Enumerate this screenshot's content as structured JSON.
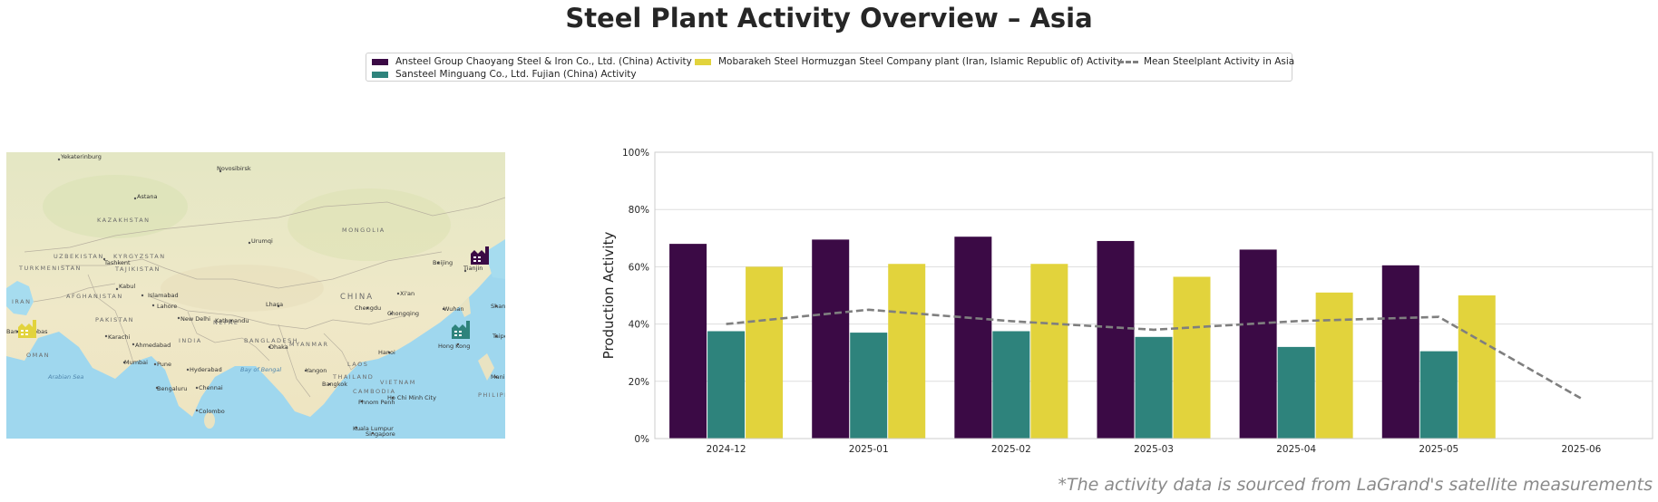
{
  "title": "Steel Plant Activity Overview – Asia",
  "footnote": "*The activity data is sourced from LaGrand's satellite measurements",
  "legend": {
    "items": [
      {
        "label": "Ansteel Group Chaoyang Steel & Iron Co., Ltd. (China) Activity",
        "color": "#3b0a45"
      },
      {
        "label": "Sansteel Minguang Co., Ltd. Fujian (China) Activity",
        "color": "#2e837c"
      },
      {
        "label": "Mobarakeh Steel Hormuzgan Steel Company plant (Iran, Islamic Republic of) Activity",
        "color": "#e2d33c"
      },
      {
        "label": "Mean Steelplant Activity in Asia",
        "color": "#7f7f7f"
      }
    ]
  },
  "map": {
    "cities": [
      "Yekaterinburg",
      "Novosibirsk",
      "Astana",
      "Urumqi",
      "Tashkent",
      "Kabul",
      "Islamabad",
      "Lahore",
      "New Delhi",
      "Karachi",
      "Ahmedabad",
      "Mumbai",
      "Pune",
      "Hyderabad",
      "Bengaluru",
      "Chennai",
      "Colombo",
      "Dhaka",
      "Yangon",
      "Bangkok",
      "Hanoi",
      "Phnom Penh",
      "Ho Chi Minh City",
      "Kuala Lumpur",
      "Singapore",
      "Beijing",
      "Tianjin",
      "Xi'an",
      "Chengdu",
      "Chongqing",
      "Wuhan",
      "Hong Kong",
      "Lhasa",
      "Kathmandu",
      "Shanghai",
      "Taipei",
      "Manila",
      "Bandar Abbas"
    ],
    "regions": [
      "KAZAKHSTAN",
      "MONGOLIA",
      "UZBEKISTAN",
      "KYRGYZSTAN",
      "TURKMENISTAN",
      "TAJIKISTAN",
      "AFGHANISTAN",
      "IRAN",
      "PAKISTAN",
      "INDIA",
      "NEPAL",
      "CHINA",
      "BANGLADESH",
      "MYANMAR",
      "LAOS",
      "THAILAND",
      "VIETNAM",
      "CAMBODIA",
      "OMAN",
      "PHILIPPINES"
    ],
    "seas": [
      "Arabian Sea",
      "Bay of Bengal"
    ],
    "markers": [
      {
        "plant": "Ansteel Group Chaoyang Steel & Iron Co., Ltd. (China)",
        "icon": "factory-icon",
        "color": "#3b0a45"
      },
      {
        "plant": "Sansteel Minguang Co., Ltd. Fujian (China)",
        "icon": "factory-icon",
        "color": "#2e837c"
      },
      {
        "plant": "Mobarakeh Steel Hormuzgan Steel Company plant (Iran, Islamic Republic of)",
        "icon": "factory-icon",
        "color": "#e2d33c"
      }
    ]
  },
  "chart_data": {
    "type": "bar",
    "ylabel": "Production Activity",
    "categories": [
      "2024-12",
      "2025-01",
      "2025-02",
      "2025-03",
      "2025-04",
      "2025-05",
      "2025-06"
    ],
    "series": [
      {
        "name": "Ansteel Group Chaoyang Steel & Iron Co., Ltd. (China) Activity",
        "type": "bar",
        "color": "#3b0a45",
        "values": [
          68,
          69.5,
          70.5,
          69,
          66,
          60.5,
          null
        ]
      },
      {
        "name": "Sansteel Minguang Co., Ltd. Fujian (China) Activity",
        "type": "bar",
        "color": "#2e837c",
        "values": [
          37.5,
          37,
          37.5,
          35.5,
          32,
          30.5,
          null
        ]
      },
      {
        "name": "Mobarakeh Steel Hormuzgan Steel Company plant (Iran, Islamic Republic of) Activity",
        "type": "bar",
        "color": "#e2d33c",
        "values": [
          60,
          61,
          61,
          56.5,
          51,
          50,
          null
        ]
      },
      {
        "name": "Mean Steelplant Activity in Asia",
        "type": "line",
        "style": "dashed",
        "color": "#7f7f7f",
        "values": [
          40,
          45,
          41,
          38,
          41,
          42.5,
          14
        ]
      }
    ],
    "ylim": [
      0,
      100
    ],
    "yticks": [
      0,
      20,
      40,
      60,
      80,
      100
    ],
    "ytick_labels": [
      "0%",
      "20%",
      "40%",
      "60%",
      "80%",
      "100%"
    ],
    "grid": "horizontal",
    "legend_position": "top-center"
  }
}
